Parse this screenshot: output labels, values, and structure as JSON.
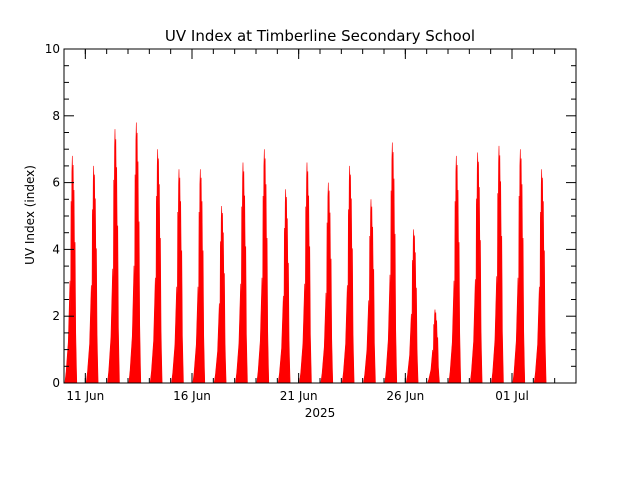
{
  "chart_data": {
    "type": "area",
    "title": "UV Index at Timberline Secondary School",
    "xlabel": "2025",
    "ylabel": "UV Index (index)",
    "ylim": [
      0,
      10
    ],
    "xlim": [
      "2025-06-10",
      "2025-07-04"
    ],
    "y_ticks": [
      "0",
      "2",
      "4",
      "6",
      "8",
      "10"
    ],
    "x_ticks": [
      {
        "date": "2025-06-11",
        "label": "11 Jun"
      },
      {
        "date": "2025-06-16",
        "label": "16 Jun"
      },
      {
        "date": "2025-06-21",
        "label": "21 Jun"
      },
      {
        "date": "2025-06-26",
        "label": "26 Jun"
      },
      {
        "date": "2025-07-01",
        "label": "01 Jul"
      }
    ],
    "fill_color": "#ff0000",
    "grid": false,
    "series": [
      {
        "daily_peaks": [
          {
            "date": "2025-06-10",
            "peak": 6.8
          },
          {
            "date": "2025-06-11",
            "peak": 6.5
          },
          {
            "date": "2025-06-12",
            "peak": 7.6
          },
          {
            "date": "2025-06-13",
            "peak": 7.8
          },
          {
            "date": "2025-06-14",
            "peak": 7.0
          },
          {
            "date": "2025-06-15",
            "peak": 6.4
          },
          {
            "date": "2025-06-16",
            "peak": 6.4
          },
          {
            "date": "2025-06-17",
            "peak": 5.3
          },
          {
            "date": "2025-06-18",
            "peak": 6.6
          },
          {
            "date": "2025-06-19",
            "peak": 7.0
          },
          {
            "date": "2025-06-20",
            "peak": 5.8
          },
          {
            "date": "2025-06-21",
            "peak": 6.6
          },
          {
            "date": "2025-06-22",
            "peak": 6.0
          },
          {
            "date": "2025-06-23",
            "peak": 6.5
          },
          {
            "date": "2025-06-24",
            "peak": 5.5
          },
          {
            "date": "2025-06-25",
            "peak": 7.2
          },
          {
            "date": "2025-06-26",
            "peak": 4.6
          },
          {
            "date": "2025-06-27",
            "peak": 2.2
          },
          {
            "date": "2025-06-28",
            "peak": 6.8
          },
          {
            "date": "2025-06-29",
            "peak": 6.9
          },
          {
            "date": "2025-06-30",
            "peak": 7.1
          },
          {
            "date": "2025-07-01",
            "peak": 7.0
          },
          {
            "date": "2025-07-02",
            "peak": 6.4
          }
        ]
      }
    ]
  }
}
